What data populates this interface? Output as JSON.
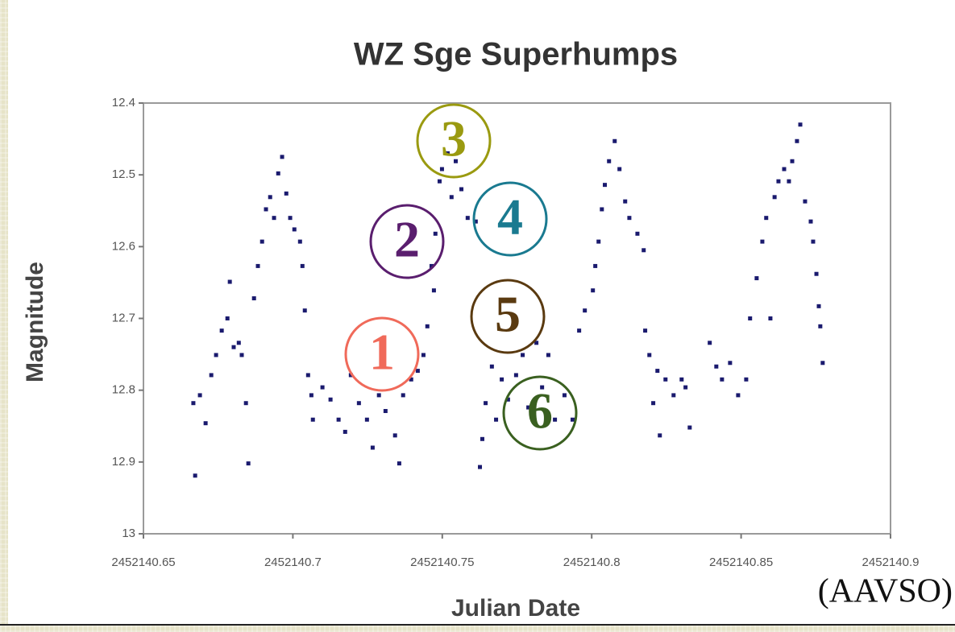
{
  "chart_data": {
    "type": "scatter",
    "title": "WZ Sge Superhumps",
    "x_label": "Julian Date",
    "y_label": "Magnitude",
    "source": "(AAVSO)",
    "annotations": [
      {
        "text": "1",
        "color": "#f06a5a"
      },
      {
        "text": "2",
        "color": "#5a1e6e"
      },
      {
        "text": "3",
        "color": "#9a9a10"
      },
      {
        "text": "4",
        "color": "#1a7a90"
      },
      {
        "text": "5",
        "color": "#5a3a10"
      },
      {
        "text": "6",
        "color": "#3a6020"
      }
    ],
    "color": "#1a1a6e",
    "y_inverted": true,
    "xlim": [
      2452140.65,
      2452140.9
    ],
    "xticks": [
      2452140.65,
      2452140.7,
      2452140.75,
      2452140.8,
      2452140.85,
      2452140.9
    ],
    "ylim": [
      12.4,
      13
    ],
    "yticks": [
      12.4,
      12.5,
      12.6,
      12.7,
      12.8,
      12.9,
      13
    ],
    "x": [
      2452140.6673,
      2452140.6667,
      2452140.6689,
      2452140.6708,
      2452140.6727,
      2452140.6743,
      2452140.6762,
      2452140.6781,
      2452140.6789,
      2452140.6802,
      2452140.6819,
      2452140.6829,
      2452140.6843,
      2452140.6851,
      2452140.687,
      2452140.6883,
      2452140.6897,
      2452140.691,
      2452140.6924,
      2452140.6937,
      2452140.6951,
      2452140.6964,
      2452140.6978,
      2452140.6991,
      2452140.7005,
      2452140.7024,
      2452140.7032,
      2452140.704,
      2452140.7051,
      2452140.7062,
      2452140.7067,
      2452140.7099,
      2452140.7126,
      2452140.7153,
      2452140.7175,
      2452140.7194,
      2452140.7221,
      2452140.7248,
      2452140.7267,
      2452140.7288,
      2452140.731,
      2452140.7342,
      2452140.7356,
      2452140.7369,
      2452140.7396,
      2452140.7418,
      2452140.7437,
      2452140.745,
      2452140.7464,
      2452140.7472,
      2452140.7477,
      2452140.7491,
      2452140.7499,
      2452140.7518,
      2452140.7531,
      2452140.7545,
      2452140.7564,
      2452140.7585,
      2452140.7612,
      2452140.7626,
      2452140.7634,
      2452140.7645,
      2452140.7666,
      2452140.768,
      2452140.7699,
      2452140.772,
      2452140.7747,
      2452140.7769,
      2452140.7788,
      2452140.7815,
      2452140.7834,
      2452140.7855,
      2452140.7877,
      2452140.7909,
      2452140.7936,
      2452140.7958,
      2452140.7977,
      2452140.8004,
      2452140.8012,
      2452140.8023,
      2452140.8034,
      2452140.8044,
      2452140.8058,
      2452140.8077,
      2452140.8093,
      2452140.8112,
      2452140.8126,
      2452140.8153,
      2452140.8174,
      2452140.8179,
      2452140.8193,
      2452140.8206,
      2452140.822,
      2452140.8228,
      2452140.8247,
      2452140.8274,
      2452140.8301,
      2452140.8314,
      2452140.8328,
      2452140.8395,
      2452140.8417,
      2452140.8436,
      2452140.8463,
      2452140.849,
      2452140.8517,
      2452140.853,
      2452140.8552,
      2452140.8571,
      2452140.8584,
      2452140.8598,
      2452140.8612,
      2452140.8625,
      2452140.8644,
      2452140.866,
      2452140.8671,
      2452140.8687,
      2452140.8698,
      2452140.8714,
      2452140.8733,
      2452140.8741,
      2452140.8752,
      2452140.876,
      2452140.8765,
      2452140.8773
    ],
    "values": [
      12.919,
      12.818,
      12.807,
      12.846,
      12.779,
      12.751,
      12.717,
      12.7,
      12.649,
      12.74,
      12.734,
      12.751,
      12.818,
      12.902,
      12.672,
      12.627,
      12.593,
      12.548,
      12.531,
      12.56,
      12.498,
      12.475,
      12.526,
      12.56,
      12.576,
      12.593,
      12.627,
      12.689,
      12.779,
      12.807,
      12.841,
      12.796,
      12.813,
      12.841,
      12.858,
      12.779,
      12.818,
      12.841,
      12.88,
      12.807,
      12.829,
      12.863,
      12.902,
      12.807,
      12.785,
      12.773,
      12.751,
      12.711,
      12.627,
      12.661,
      12.582,
      12.509,
      12.492,
      12.47,
      12.531,
      12.481,
      12.52,
      12.56,
      12.565,
      12.907,
      12.868,
      12.818,
      12.767,
      12.841,
      12.785,
      12.813,
      12.779,
      12.751,
      12.824,
      12.734,
      12.796,
      12.751,
      12.841,
      12.807,
      12.841,
      12.717,
      12.689,
      12.661,
      12.627,
      12.593,
      12.548,
      12.514,
      12.481,
      12.453,
      12.492,
      12.537,
      12.56,
      12.582,
      12.605,
      12.717,
      12.751,
      12.818,
      12.773,
      12.863,
      12.785,
      12.807,
      12.785,
      12.796,
      12.852,
      12.734,
      12.767,
      12.785,
      12.762,
      12.807,
      12.785,
      12.7,
      12.644,
      12.593,
      12.56,
      12.7,
      12.531,
      12.509,
      12.492,
      12.509,
      12.481,
      12.453,
      12.43,
      12.537,
      12.565,
      12.593,
      12.638,
      12.683,
      12.711,
      12.762
    ]
  }
}
